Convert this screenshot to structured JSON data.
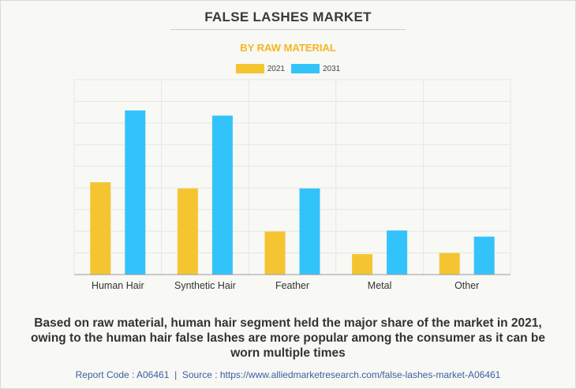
{
  "title": "FALSE LASHES MARKET",
  "subtitle": "BY RAW MATERIAL",
  "caption": "Based on raw material, human hair segment held the major share of the market in 2021, owing to the human hair false lashes are more popular among the consumer as it can be worn multiple times",
  "footer": {
    "report_code": "Report Code : A06461",
    "separator": "|",
    "source": "Source : https://www.alliedmarketresearch.com/false-lashes-market-A06461"
  },
  "colors": {
    "series_2021": "#f5c531",
    "series_2031": "#33c3fb",
    "title": "#3a3a3a",
    "subtitle": "#f5b51f",
    "footer": "#3a5fa0"
  },
  "chart_data": {
    "type": "bar",
    "title": "FALSE LASHES MARKET",
    "subtitle": "BY RAW MATERIAL",
    "xlabel": "",
    "ylabel": "",
    "categories": [
      "Human Hair",
      "Synthetic Hair",
      "Feather",
      "Metal",
      "Other"
    ],
    "series": [
      {
        "name": "2021",
        "color": "#f5c531",
        "values": [
          4.5,
          4.2,
          2.1,
          1.0,
          1.05
        ]
      },
      {
        "name": "2031",
        "color": "#33c3fb",
        "values": [
          8.0,
          7.75,
          4.2,
          2.15,
          1.85
        ]
      }
    ],
    "ylim": [
      0,
      9.5
    ],
    "grid": true,
    "legend": "top-center"
  }
}
